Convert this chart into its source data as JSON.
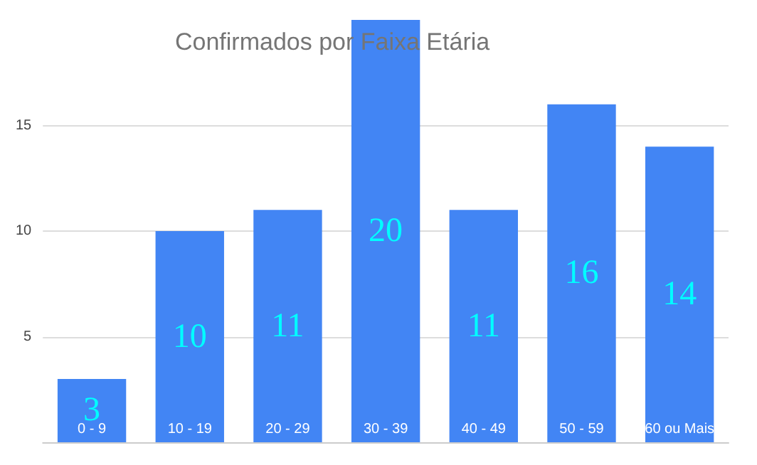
{
  "chart_data": {
    "type": "bar",
    "title": "Confirmados por Faixa Etária",
    "categories": [
      "0 - 9",
      "10 - 19",
      "20 - 29",
      "30 - 39",
      "40 - 49",
      "50 - 59",
      "60 ou Mais"
    ],
    "values": [
      3,
      10,
      11,
      20,
      11,
      16,
      14
    ],
    "color": "#4285f4",
    "ylim": [
      0,
      20
    ],
    "yticks": [
      5,
      10,
      15
    ],
    "grid": "y",
    "data_labels": true
  }
}
